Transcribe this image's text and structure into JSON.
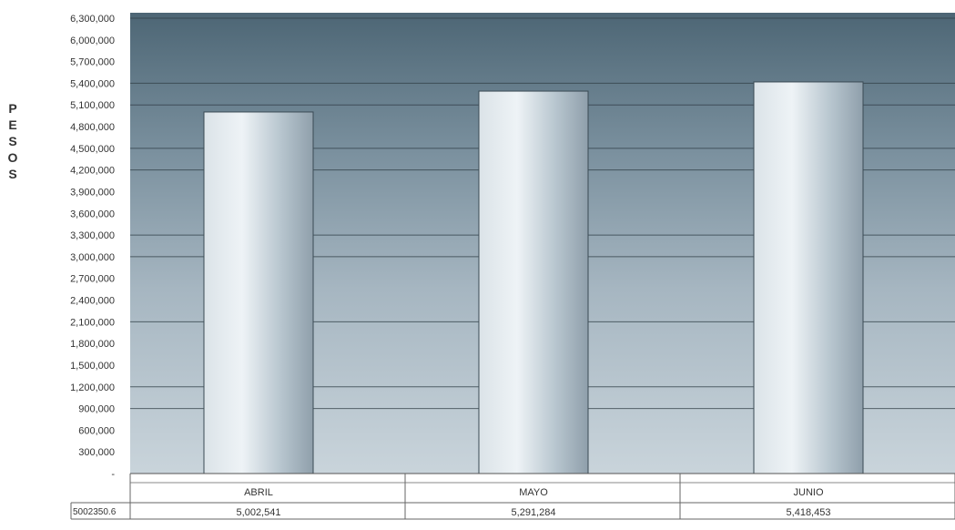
{
  "chart_data": {
    "type": "bar",
    "title": "",
    "xlabel": "",
    "ylabel": "PESOS",
    "ylim": [
      0,
      6300000
    ],
    "ytick_values": [
      0,
      300000,
      600000,
      900000,
      1200000,
      1500000,
      1800000,
      2100000,
      2400000,
      2700000,
      3000000,
      3300000,
      3600000,
      3900000,
      4200000,
      4500000,
      4800000,
      5100000,
      5400000,
      5700000,
      6000000,
      6300000
    ],
    "ytick_labels": [
      "-",
      "300,000",
      "600,000",
      "900,000",
      "1,200,000",
      "1,500,000",
      "1,800,000",
      "2,100,000",
      "2,400,000",
      "2,700,000",
      "3,000,000",
      "3,300,000",
      "3,600,000",
      "3,900,000",
      "4,200,000",
      "4,500,000",
      "4,800,000",
      "5,100,000",
      "5,400,000",
      "5,700,000",
      "6,000,000",
      "6,300,000"
    ],
    "categories": [
      "ABRIL",
      "MAYO",
      "JUNIO"
    ],
    "values": [
      5002541,
      5291284,
      5418453
    ],
    "value_labels": [
      "5,002,541",
      "5,291,284",
      "5,418,453"
    ],
    "table_row_label": "5002350.6",
    "grid": true,
    "colors": {
      "plot_dark": "#4d6675",
      "plot_light": "#c3d0d8",
      "bar_light": "#e8eef2",
      "bar_dark": "#9aaab5"
    }
  }
}
